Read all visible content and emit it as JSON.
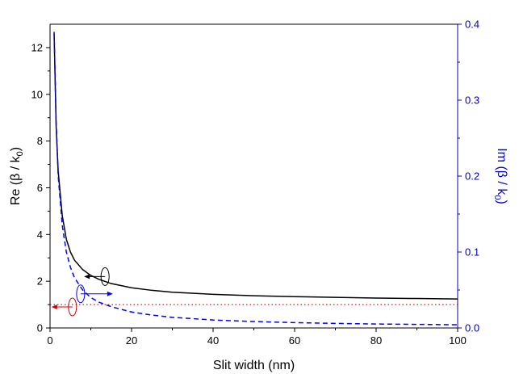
{
  "chart_data": {
    "type": "line",
    "xlabel": "Slit width (nm)",
    "ylabel_left": {
      "main": "Re (β / k",
      "sub": "0",
      "close": ")"
    },
    "ylabel_right": {
      "main": "Im (β / k",
      "sub": "0",
      "close": ")"
    },
    "xlim": [
      0,
      100
    ],
    "ylim_left": [
      0,
      13
    ],
    "ylim_right": [
      0,
      0.4
    ],
    "x_ticks": [
      "0",
      "20",
      "40",
      "60",
      "80",
      "100"
    ],
    "y_left_ticks": [
      "0",
      "2",
      "4",
      "6",
      "8",
      "10",
      "12"
    ],
    "y_right_ticks": [
      "0.0",
      "0.1",
      "0.2",
      "0.3",
      "0.4"
    ],
    "grid": false,
    "colors": {
      "re": "#000000",
      "im": "#0000ff",
      "ref": "#cc0000",
      "right_axis": "#0000cc"
    },
    "series": [
      {
        "axis": "left",
        "style": "solid",
        "x": [
          1,
          1.5,
          2,
          3,
          4,
          5,
          6,
          8,
          10,
          12,
          15,
          20,
          25,
          30,
          40,
          50,
          60,
          70,
          80,
          90,
          100
        ],
        "y": [
          12.6,
          8.6,
          6.7,
          4.8,
          3.8,
          3.25,
          2.9,
          2.5,
          2.25,
          2.08,
          1.9,
          1.72,
          1.61,
          1.53,
          1.44,
          1.38,
          1.34,
          1.31,
          1.28,
          1.26,
          1.24
        ]
      },
      {
        "axis": "right",
        "style": "dashed",
        "x": [
          1,
          1.5,
          2,
          3,
          4,
          5,
          6,
          8,
          10,
          12,
          15,
          20,
          25,
          30,
          40,
          50,
          60,
          70,
          80,
          90,
          100
        ],
        "y": [
          0.39,
          0.27,
          0.2,
          0.135,
          0.1,
          0.08,
          0.066,
          0.05,
          0.04,
          0.034,
          0.028,
          0.021,
          0.017,
          0.014,
          0.0105,
          0.0085,
          0.007,
          0.006,
          0.0052,
          0.0047,
          0.0042
        ]
      },
      {
        "axis": "left",
        "style": "dotted",
        "x": [
          0,
          100
        ],
        "y": [
          1,
          1
        ]
      }
    ],
    "annotations": [
      {
        "ellipse_at": [
          13.5,
          2.2
        ],
        "axis": "left",
        "arrow": "left",
        "color": "#000000"
      },
      {
        "ellipse_at": [
          7.5,
          0.045
        ],
        "axis": "right",
        "arrow": "right",
        "color": "#0000ff"
      },
      {
        "ellipse_at": [
          5.5,
          0.9
        ],
        "axis": "left",
        "arrow": "left",
        "color": "#cc0000"
      }
    ]
  }
}
